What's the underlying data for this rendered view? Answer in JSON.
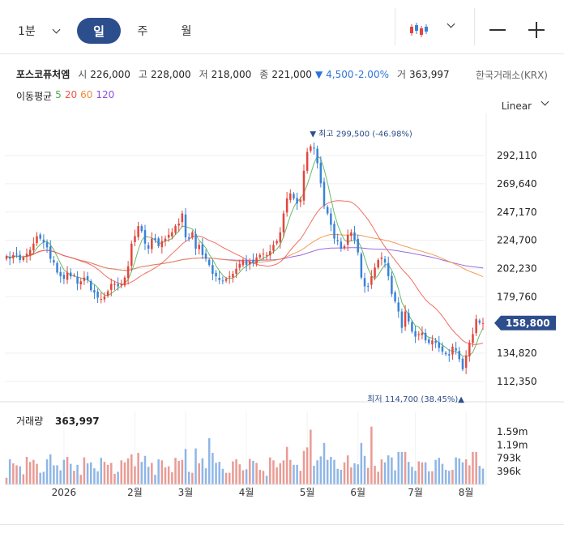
{
  "toolbar": {
    "interval_select": "1분",
    "tabs": [
      "일",
      "주",
      "월"
    ],
    "active_tab": "일"
  },
  "quote": {
    "name": "포스코퓨처엠",
    "open_label": "시",
    "open": "226,000",
    "high_label": "고",
    "high": "228,000",
    "low_label": "저",
    "low": "218,000",
    "close_label": "종",
    "close": "221,000",
    "change_arrow": "▼",
    "change": "4,500",
    "change_pct": "-2.00%",
    "volume_label": "거",
    "volume": "363,997",
    "exchange": "한국거래소(KRX)"
  },
  "ma": {
    "label": "이동평균",
    "periods": [
      {
        "name": "5",
        "color": "#4caf50"
      },
      {
        "name": "20",
        "color": "#f0564a"
      },
      {
        "name": "60",
        "color": "#f28c38"
      },
      {
        "name": "120",
        "color": "#8a4fe0"
      }
    ]
  },
  "scale_mode": "Linear",
  "colors": {
    "up": "#e2463c",
    "down": "#3b82d6",
    "accent": "#2d4e8c"
  },
  "chart_data": {
    "type": "candlestick",
    "y_ticks": [
      "292,110",
      "269,640",
      "247,170",
      "224,700",
      "202,230",
      "179,760",
      "134,820",
      "112,350"
    ],
    "ylim": [
      100000,
      316000
    ],
    "x_ticks": [
      "2026",
      "2월",
      "3월",
      "4월",
      "5월",
      "6월",
      "7월",
      "8월"
    ],
    "current_price_label": "158,800",
    "annotations": {
      "high": {
        "arrow": "▼",
        "label": "최고",
        "value": "299,500",
        "pct": "(-46.98%)"
      },
      "low": {
        "label": "최저",
        "value": "114,700",
        "pct": "(38.45%)",
        "arrow": "▲"
      }
    },
    "volume_panel": {
      "label": "거래량",
      "value": "363,997",
      "y_ticks": [
        "1.59m",
        "1.19m",
        "793k",
        "396k"
      ],
      "ylim": [
        0,
        2100000
      ]
    },
    "close_series": [
      212000,
      210000,
      213000,
      214000,
      209000,
      211000,
      214000,
      217000,
      222000,
      228000,
      226000,
      223000,
      219000,
      210000,
      207000,
      199000,
      196000,
      194000,
      199000,
      196000,
      197000,
      190000,
      192000,
      195000,
      193000,
      185000,
      183000,
      179000,
      178000,
      180000,
      184000,
      190000,
      190000,
      188000,
      190000,
      195000,
      204000,
      222000,
      228000,
      236000,
      232000,
      222000,
      218000,
      226000,
      225000,
      220000,
      224000,
      226000,
      229000,
      231000,
      236000,
      238000,
      246000,
      227000,
      226000,
      231000,
      218000,
      221000,
      213000,
      210000,
      205000,
      198000,
      196000,
      193000,
      192000,
      194000,
      196000,
      198000,
      202000,
      206000,
      209000,
      205000,
      208000,
      207000,
      211000,
      213000,
      214000,
      213000,
      216000,
      221000,
      224000,
      231000,
      246000,
      258000,
      262000,
      258000,
      254000,
      257000,
      280000,
      295000,
      299500,
      298000,
      286000,
      270000,
      252000,
      246000,
      237000,
      226000,
      224000,
      218000,
      220000,
      229000,
      231000,
      225000,
      215000,
      195000,
      188000,
      188000,
      196000,
      203000,
      209000,
      211000,
      207000,
      196000,
      182000,
      176000,
      168000,
      155000,
      168000,
      160000,
      152000,
      148000,
      150000,
      151000,
      145000,
      143000,
      145000,
      143000,
      139000,
      136000,
      134000,
      133000,
      140000,
      137000,
      130000,
      122000,
      133000,
      143000,
      150000,
      162000,
      159000,
      158800
    ]
  }
}
